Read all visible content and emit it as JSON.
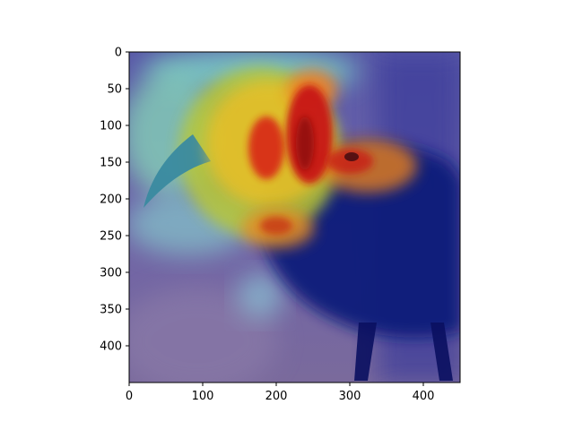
{
  "image": {
    "subject": "bird-heatmap",
    "colormap": "jet",
    "x_range": [
      0,
      450
    ],
    "y_range": [
      0,
      450
    ],
    "y_inverted": true
  },
  "axes": {
    "x_ticks": [
      {
        "value": 0,
        "label": "0"
      },
      {
        "value": 100,
        "label": "100"
      },
      {
        "value": 200,
        "label": "200"
      },
      {
        "value": 300,
        "label": "300"
      },
      {
        "value": 400,
        "label": "400"
      }
    ],
    "y_ticks": [
      {
        "value": 0,
        "label": "0"
      },
      {
        "value": 50,
        "label": "50"
      },
      {
        "value": 100,
        "label": "100"
      },
      {
        "value": 150,
        "label": "150"
      },
      {
        "value": 200,
        "label": "200"
      },
      {
        "value": 250,
        "label": "250"
      },
      {
        "value": 300,
        "label": "300"
      },
      {
        "value": 350,
        "label": "350"
      },
      {
        "value": 400,
        "label": "400"
      }
    ]
  },
  "colors": {
    "background": "#ffffff",
    "frame": "#000000",
    "overlay_low": "#4a4a9a",
    "overlay_mid": "#7ee0c8",
    "overlay_high": "#d01818"
  }
}
